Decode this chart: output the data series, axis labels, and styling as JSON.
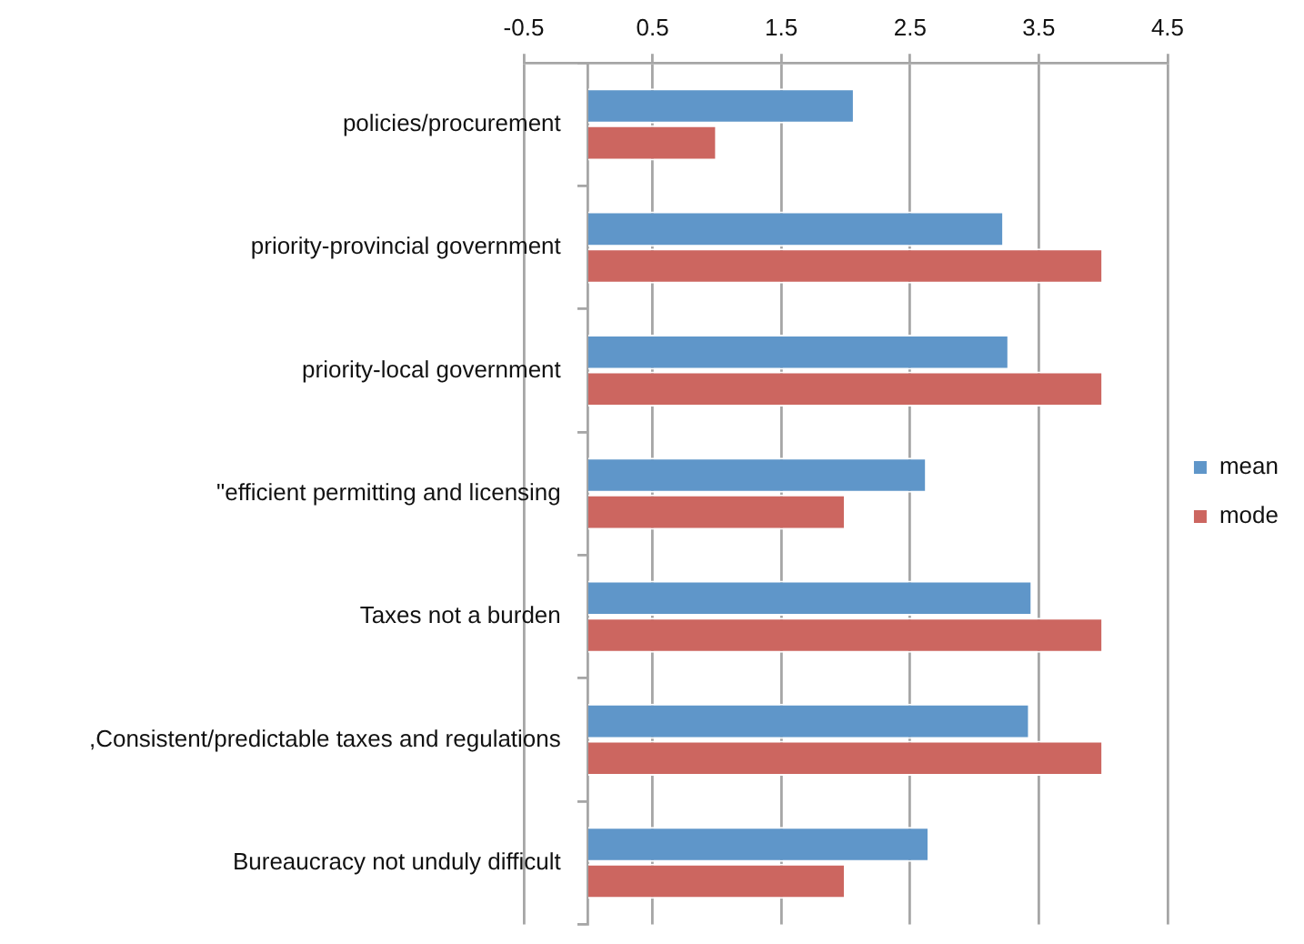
{
  "chart_data": {
    "type": "bar",
    "orientation": "horizontal",
    "categories": [
      "policies/procurement",
      "priority-provincial government",
      "priority-local government",
      "\"efficient permitting and licensing",
      "Taxes not a burden",
      ",Consistent/predictable taxes and regulations",
      "Bureaucracy not unduly difficult"
    ],
    "series": [
      {
        "name": "mean",
        "color": "#5f96c9",
        "values": [
          2.07,
          3.23,
          3.27,
          2.63,
          3.45,
          3.43,
          2.65
        ]
      },
      {
        "name": "mode",
        "color": "#cc6660",
        "values": [
          1,
          4,
          4,
          2,
          4,
          4,
          2
        ]
      }
    ],
    "xlim": [
      -0.5,
      4.5
    ],
    "xticks": [
      -0.5,
      0.5,
      1.5,
      2.5,
      3.5,
      4.5
    ],
    "grid": "x",
    "legend": "right"
  }
}
